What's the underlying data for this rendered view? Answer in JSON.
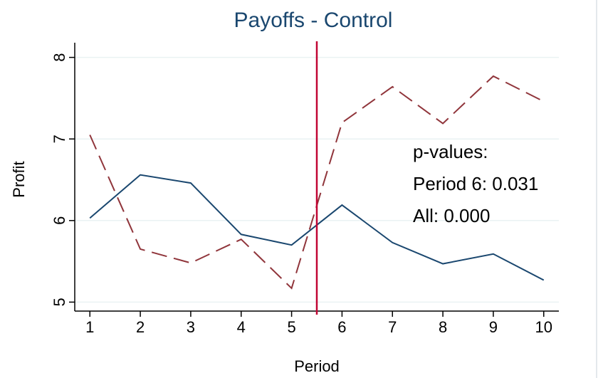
{
  "chart_data": {
    "type": "line",
    "title": "Payoffs - Control",
    "x_label": "Period",
    "y_label": "Profit",
    "x": [
      1,
      2,
      3,
      4,
      5,
      6,
      7,
      8,
      9,
      10
    ],
    "series": [
      {
        "color": "#1a476f",
        "line_style": "solid",
        "values": [
          6.03,
          6.56,
          6.46,
          5.83,
          5.7,
          6.19,
          5.73,
          5.47,
          5.59,
          5.27
        ]
      },
      {
        "color": "#90353b",
        "line_style": "dashed",
        "values": [
          7.05,
          5.65,
          5.48,
          5.77,
          5.17,
          7.2,
          7.64,
          7.19,
          7.77,
          7.46
        ]
      }
    ],
    "xlim": [
      0.7,
      10.3
    ],
    "ylim": [
      4.89,
      8.18
    ],
    "xticks": [
      1,
      2,
      3,
      4,
      5,
      6,
      7,
      8,
      9,
      10
    ],
    "yticks": [
      5,
      6,
      7,
      8
    ],
    "grid": true,
    "xline": 5.5,
    "xline_color": "#c10534",
    "annotations": [
      "p-values:",
      "Period 6: 0.031",
      "All: 0.000"
    ]
  }
}
